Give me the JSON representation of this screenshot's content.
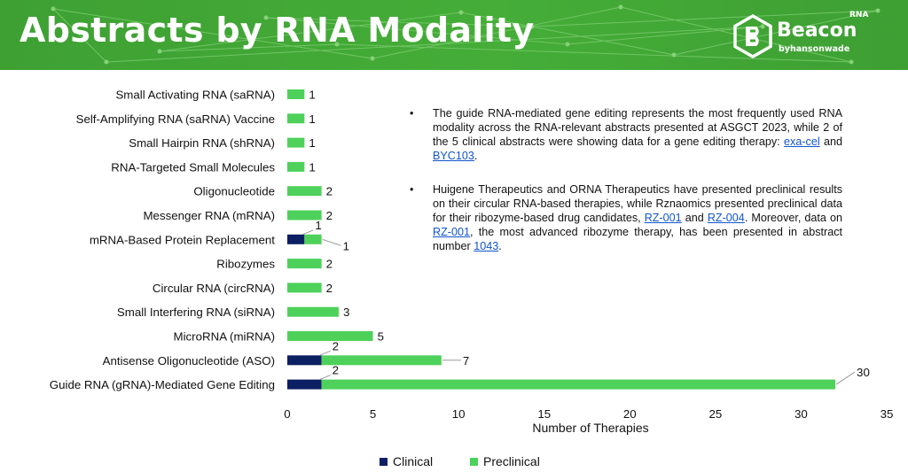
{
  "header": {
    "title": "Abstracts by RNA Modality",
    "logo": {
      "name": "Beacon",
      "superscript": "RNA",
      "byline": "byhansonwade"
    }
  },
  "colors": {
    "header_green": "#43a936",
    "clinical": "#0d1f63",
    "preclinical": "#4ed15a"
  },
  "chart_data": {
    "type": "bar",
    "orientation": "horizontal",
    "stacked": true,
    "categories": [
      "Small Activating RNA (saRNA)",
      "Self-Amplifying RNA (saRNA) Vaccine",
      "Small Hairpin RNA (shRNA)",
      "RNA-Targeted Small Molecules",
      "Oligonucleotide",
      "Messenger RNA (mRNA)",
      "mRNA-Based Protein Replacement",
      "Ribozymes",
      "Circular RNA (circRNA)",
      "Small Interfering RNA (siRNA)",
      "MicroRNA (miRNA)",
      "Antisense Oligonucleotide (ASO)",
      "Guide RNA (gRNA)-Mediated Gene Editing"
    ],
    "series": [
      {
        "name": "Clinical",
        "values": [
          0,
          0,
          0,
          0,
          0,
          0,
          1,
          0,
          0,
          0,
          0,
          2,
          2
        ]
      },
      {
        "name": "Preclinical",
        "values": [
          1,
          1,
          1,
          1,
          2,
          2,
          1,
          2,
          2,
          3,
          5,
          7,
          30
        ]
      }
    ],
    "xlabel": "Number of Therapies",
    "xlim": [
      0,
      35
    ],
    "xticks": [
      0,
      5,
      10,
      15,
      20,
      25,
      30,
      35
    ],
    "legend_position": "bottom",
    "grid": false
  },
  "notes": [
    {
      "bullet": "•",
      "parts": [
        {
          "text": "The guide RNA-mediated gene editing represents the most frequently used RNA modality across the RNA-relevant abstracts presented at ASGCT 2023, while 2 of the 5 clinical abstracts were showing data for a gene editing therapy: "
        },
        {
          "text": "exa-cel",
          "link": true
        },
        {
          "text": " and "
        },
        {
          "text": "BYC103",
          "link": true
        },
        {
          "text": "."
        }
      ]
    },
    {
      "bullet": "•",
      "parts": [
        {
          "text": "Huigene Therapeutics and ORNA Therapeutics have presented preclinical results on their circular RNA-based therapies, while Rznaomics presented preclinical data for their ribozyme-based drug candidates, "
        },
        {
          "text": "RZ-001",
          "link": true
        },
        {
          "text": " and "
        },
        {
          "text": "RZ-004",
          "link": true
        },
        {
          "text": ". Moreover, data on "
        },
        {
          "text": "RZ-001",
          "link": true
        },
        {
          "text": ", the most advanced ribozyme therapy, has been presented in abstract number "
        },
        {
          "text": "1043",
          "link": true
        },
        {
          "text": "."
        }
      ]
    }
  ]
}
